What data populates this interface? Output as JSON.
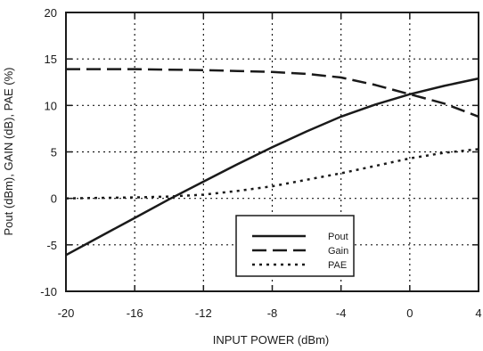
{
  "chart_data": {
    "type": "line",
    "title": "",
    "xlabel": "INPUT POWER (dBm)",
    "ylabel": "Pout (dBm), GAIN (dB), PAE (%)",
    "xlim": [
      -20,
      4
    ],
    "ylim": [
      -10,
      20
    ],
    "xticks": [
      -20,
      -16,
      -12,
      -8,
      -4,
      0,
      4
    ],
    "yticks": [
      -10,
      -5,
      0,
      5,
      10,
      15,
      20
    ],
    "grid": true,
    "legend_position": "lower-right",
    "series": [
      {
        "name": "Pout",
        "style": "solid",
        "x": [
          -20,
          -18,
          -16,
          -14,
          -12,
          -10,
          -8,
          -6,
          -4,
          -2,
          0,
          2,
          4
        ],
        "y": [
          -6.1,
          -4.1,
          -2.1,
          -0.1,
          1.8,
          3.7,
          5.5,
          7.2,
          8.8,
          10.1,
          11.2,
          12.1,
          12.9
        ]
      },
      {
        "name": "Gain",
        "style": "long-dash",
        "x": [
          -20,
          -18,
          -16,
          -14,
          -12,
          -10,
          -8,
          -6,
          -4,
          -2,
          0,
          2,
          4
        ],
        "y": [
          13.9,
          13.9,
          13.9,
          13.85,
          13.8,
          13.7,
          13.6,
          13.4,
          13.0,
          12.2,
          11.2,
          10.2,
          8.8
        ]
      },
      {
        "name": "PAE",
        "style": "dotted",
        "x": [
          -20,
          -18,
          -16,
          -14,
          -12,
          -10,
          -8,
          -6,
          -4,
          -2,
          0,
          2,
          4
        ],
        "y": [
          0.0,
          0.05,
          0.1,
          0.2,
          0.4,
          0.8,
          1.3,
          2.0,
          2.7,
          3.5,
          4.3,
          4.9,
          5.3
        ]
      }
    ]
  }
}
